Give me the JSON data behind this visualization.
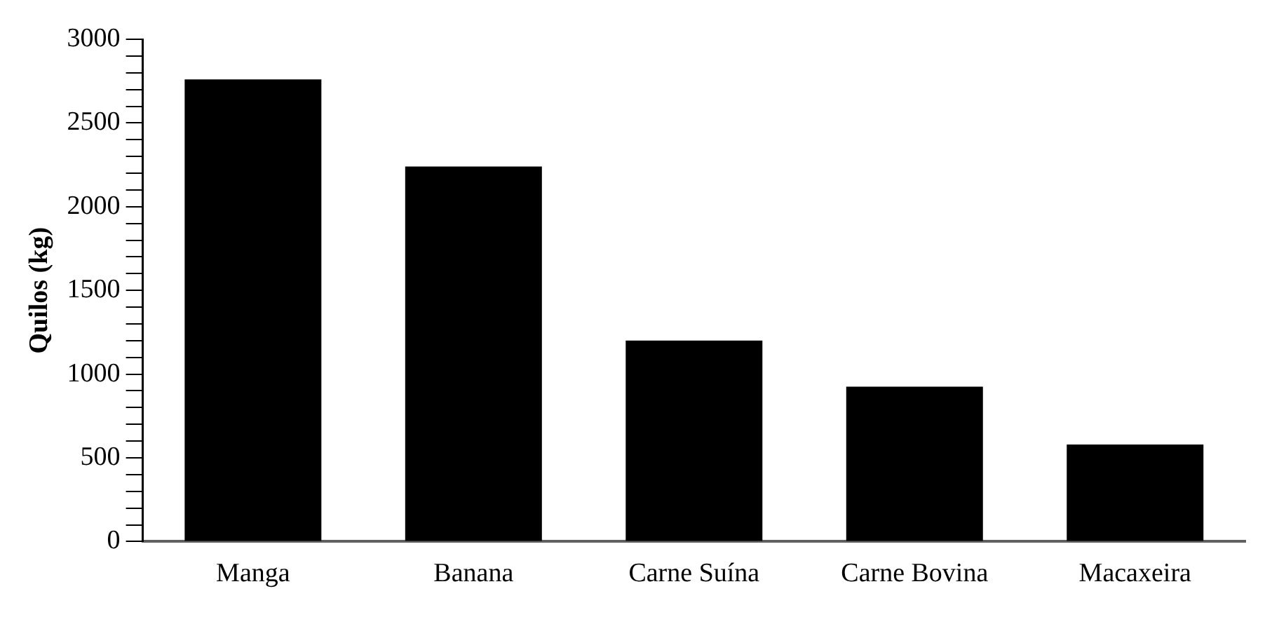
{
  "chart_data": {
    "type": "bar",
    "ylabel": "Quilos (kg)",
    "categories": [
      "Manga",
      "Banana",
      "Carne Suína",
      "Carne Bovina",
      "Macaxeira"
    ],
    "values": [
      2760,
      2240,
      1200,
      925,
      580
    ],
    "color": "#000000",
    "ylim": [
      0,
      3000
    ],
    "yticks": [
      0,
      {
        "value": 100,
        "label": null
      },
      {
        "value": 200,
        "label": null
      },
      {
        "value": 300,
        "label": null
      },
      {
        "value": 400,
        "label": null
      },
      500,
      {
        "value": 600,
        "label": null
      },
      {
        "value": 700,
        "label": null
      },
      {
        "value": 800,
        "label": null
      },
      {
        "value": 900,
        "label": null
      },
      1000,
      {
        "value": 1100,
        "label": null
      },
      {
        "value": 1200,
        "label": null
      },
      {
        "value": 1300,
        "label": null
      },
      {
        "value": 1400,
        "label": null
      },
      1500,
      {
        "value": 1600,
        "label": null
      },
      {
        "value": 1700,
        "label": null
      },
      {
        "value": 1800,
        "label": null
      },
      {
        "value": 1900,
        "label": null
      },
      2000,
      {
        "value": 2100,
        "label": null
      },
      {
        "value": 2200,
        "label": null
      },
      {
        "value": 2300,
        "label": null
      },
      {
        "value": 2400,
        "label": null
      },
      2500,
      {
        "value": 2600,
        "label": null
      },
      {
        "value": 2700,
        "label": null
      },
      {
        "value": 2800,
        "label": null
      },
      {
        "value": 2900,
        "label": null
      },
      3000
    ],
    "grid": false,
    "legend": false
  }
}
